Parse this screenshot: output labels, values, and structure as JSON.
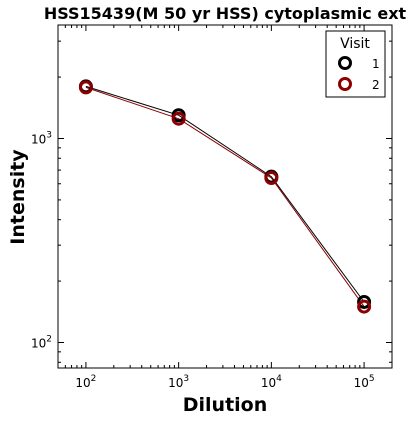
{
  "chart_data": {
    "type": "line",
    "title": "HSS15439(M 50 yr HSS) cytoplasmic ext",
    "xlabel": "Dilution",
    "ylabel": "Intensity",
    "xscale": "log",
    "yscale": "log",
    "xlim": [
      50,
      200000
    ],
    "ylim": [
      75,
      3600
    ],
    "x": [
      100,
      1000,
      10000,
      100000
    ],
    "xtick_values": [
      100,
      1000,
      10000,
      100000
    ],
    "xtick_labels": [
      {
        "base": "10",
        "exp": "2"
      },
      {
        "base": "10",
        "exp": "3"
      },
      {
        "base": "10",
        "exp": "4"
      },
      {
        "base": "10",
        "exp": "5"
      }
    ],
    "ytick_values": [
      100,
      1000
    ],
    "ytick_labels": [
      {
        "base": "10",
        "exp": "2"
      },
      {
        "base": "10",
        "exp": "3"
      }
    ],
    "legend": {
      "title": "Visit",
      "position": "top-right"
    },
    "series": [
      {
        "name": "1",
        "color": "#000000",
        "values": [
          1800,
          1300,
          650,
          158
        ]
      },
      {
        "name": "2",
        "color": "#8b0000",
        "values": [
          1780,
          1250,
          640,
          150
        ]
      }
    ],
    "grid": false
  }
}
